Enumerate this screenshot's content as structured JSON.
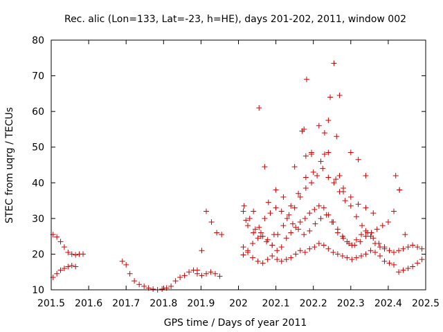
{
  "chart_data": {
    "type": "scatter",
    "title": "Rec. alic (Lon=133, Lat=-23, h=HE), days 201-202, 2011, window 002",
    "xlabel": "GPS time / Days of year 2011",
    "ylabel": "STEC from uqrg / TECUs",
    "xlim": [
      201.5,
      202.5
    ],
    "ylim": [
      10,
      80
    ],
    "xticks": [
      201.5,
      201.6,
      201.7,
      201.8,
      201.9,
      202,
      202.1,
      202.2,
      202.3,
      202.4,
      202.5
    ],
    "xtick_labels": [
      "201.5",
      "201.6",
      "201.7",
      "201.8",
      "201.9",
      "202",
      "202.1",
      "202.2",
      "202.3",
      "202.4",
      "202.5"
    ],
    "yticks": [
      10,
      20,
      30,
      40,
      50,
      60,
      70,
      80
    ],
    "ytick_labels": [
      "10",
      "20",
      "30",
      "40",
      "50",
      "60",
      "70",
      "80"
    ],
    "marker": "+",
    "color": "#cc0000",
    "series": [
      {
        "name": "STEC",
        "x": [
          201.505,
          201.515,
          201.525,
          201.535,
          201.545,
          201.555,
          201.565,
          201.575,
          201.585,
          201.505,
          201.515,
          201.525,
          201.535,
          201.545,
          201.555,
          201.565,
          201.69,
          201.7,
          201.71,
          201.722,
          201.735,
          201.748,
          201.76,
          201.772,
          201.784,
          201.796,
          201.808,
          201.82,
          201.832,
          201.844,
          201.856,
          201.868,
          201.88,
          201.89,
          201.902,
          201.914,
          201.926,
          201.938,
          201.95,
          201.89,
          201.902,
          201.914,
          201.928,
          201.942,
          201.955,
          202.013,
          202.025,
          202.038,
          202.052,
          202.065,
          202.078,
          202.09,
          202.103,
          202.115,
          202.128,
          202.14,
          202.153,
          202.165,
          202.178,
          202.19,
          202.203,
          202.215,
          202.228,
          202.24,
          202.253,
          202.265,
          202.278,
          202.29,
          202.303,
          202.315,
          202.328,
          202.34,
          202.353,
          202.365,
          202.378,
          202.39,
          202.403,
          202.415,
          202.428,
          202.44,
          202.453,
          202.465,
          202.478,
          202.49,
          202.013,
          202.025,
          202.038,
          202.052,
          202.065,
          202.078,
          202.09,
          202.103,
          202.115,
          202.128,
          202.14,
          202.153,
          202.165,
          202.178,
          202.19,
          202.203,
          202.215,
          202.228,
          202.24,
          202.253,
          202.265,
          202.278,
          202.29,
          202.303,
          202.315,
          202.328,
          202.34,
          202.353,
          202.365,
          202.378,
          202.39,
          202.403,
          202.415,
          202.428,
          202.44,
          202.453,
          202.465,
          202.478,
          202.49,
          202.013,
          202.025,
          202.04,
          202.055,
          202.07,
          202.085,
          202.1,
          202.115,
          202.13,
          202.145,
          202.16,
          202.175,
          202.19,
          202.205,
          202.22,
          202.235,
          202.25,
          202.265,
          202.28,
          202.295,
          202.31,
          202.325,
          202.34,
          202.355,
          202.37,
          202.385,
          202.4,
          202.415,
          202.43,
          202.445,
          202.015,
          202.03,
          202.045,
          202.06,
          202.075,
          202.09,
          202.105,
          202.12,
          202.135,
          202.15,
          202.165,
          202.18,
          202.195,
          202.21,
          202.225,
          202.24,
          202.255,
          202.27,
          202.285,
          202.3,
          202.315,
          202.33,
          202.345,
          202.36,
          202.375,
          202.39,
          202.02,
          202.04,
          202.06,
          202.08,
          202.1,
          202.12,
          202.14,
          202.16,
          202.18,
          202.2,
          202.22,
          202.24,
          202.26,
          202.28,
          202.3,
          202.32,
          202.34,
          202.36,
          202.055,
          202.07,
          202.095,
          202.15,
          202.17,
          202.18,
          202.195,
          202.215,
          202.23,
          202.245,
          202.262,
          202.27,
          202.3,
          202.32,
          202.34,
          202.42,
          202.43,
          202.175,
          202.182,
          202.195,
          202.23,
          202.24,
          202.255,
          202.27,
          202.28
        ],
        "y": [
          25.5,
          24.8,
          23.5,
          22.0,
          20.5,
          20.0,
          19.8,
          20.0,
          20.0,
          13.5,
          14.5,
          15.5,
          16.0,
          16.5,
          16.8,
          16.5,
          18.0,
          17.0,
          14.5,
          12.5,
          11.5,
          11.0,
          10.5,
          10.2,
          10.0,
          10.2,
          10.5,
          11.0,
          12.5,
          13.5,
          14.0,
          15.0,
          15.5,
          14.5,
          14.0,
          14.5,
          15.0,
          14.5,
          13.8,
          15.5,
          21.0,
          32.0,
          29.0,
          26.0,
          25.5,
          19.8,
          20.5,
          19.0,
          18.0,
          17.5,
          18.5,
          19.5,
          18.5,
          18.0,
          18.5,
          19.0,
          20.0,
          21.0,
          20.5,
          21.5,
          22.0,
          23.0,
          22.5,
          21.5,
          20.5,
          20.0,
          19.5,
          19.0,
          18.5,
          19.0,
          19.5,
          20.0,
          21.0,
          20.5,
          19.5,
          18.0,
          17.5,
          17.0,
          15.0,
          15.5,
          16.0,
          16.5,
          17.5,
          18.5,
          22.0,
          21.0,
          23.0,
          24.5,
          25.0,
          24.0,
          22.5,
          21.0,
          22.0,
          24.5,
          26.0,
          27.5,
          29.0,
          30.0,
          31.5,
          32.5,
          33.5,
          33.0,
          31.0,
          29.0,
          27.0,
          25.0,
          23.5,
          22.5,
          24.0,
          25.5,
          26.5,
          25.0,
          23.0,
          22.0,
          21.5,
          21.0,
          20.5,
          21.0,
          21.5,
          22.0,
          22.5,
          22.0,
          21.5,
          32.0,
          28.0,
          26.0,
          27.5,
          30.0,
          31.5,
          33.0,
          32.0,
          30.0,
          28.5,
          27.0,
          25.5,
          26.5,
          28.5,
          30.0,
          31.0,
          29.0,
          26.0,
          24.5,
          23.0,
          22.5,
          23.5,
          25.0,
          26.0,
          27.0,
          28.0,
          29.0,
          32.0,
          38.0,
          25.5,
          33.5,
          30.0,
          27.0,
          25.0,
          23.5,
          22.5,
          25.5,
          28.0,
          31.0,
          33.0,
          36.0,
          38.5,
          40.0,
          42.0,
          44.0,
          41.5,
          40.0,
          37.5,
          35.0,
          33.5,
          30.5,
          28.0,
          26.0,
          24.5,
          23.0,
          22.0,
          29.5,
          32.0,
          26.0,
          34.5,
          38.0,
          36.0,
          33.5,
          37.0,
          41.5,
          43.0,
          46.0,
          48.5,
          41.0,
          38.5,
          36.0,
          34.0,
          33.0,
          31.5,
          61.0,
          44.5,
          25.5,
          44.5,
          54.5,
          47.5,
          48.5,
          56.0,
          54.0,
          64.0,
          53.0,
          64.5,
          48.5,
          46.5,
          42.0,
          42.0,
          38.0,
          55.0,
          69.0,
          48.0,
          48.0,
          57.5,
          73.5,
          42.0,
          37.5
        ]
      }
    ]
  }
}
